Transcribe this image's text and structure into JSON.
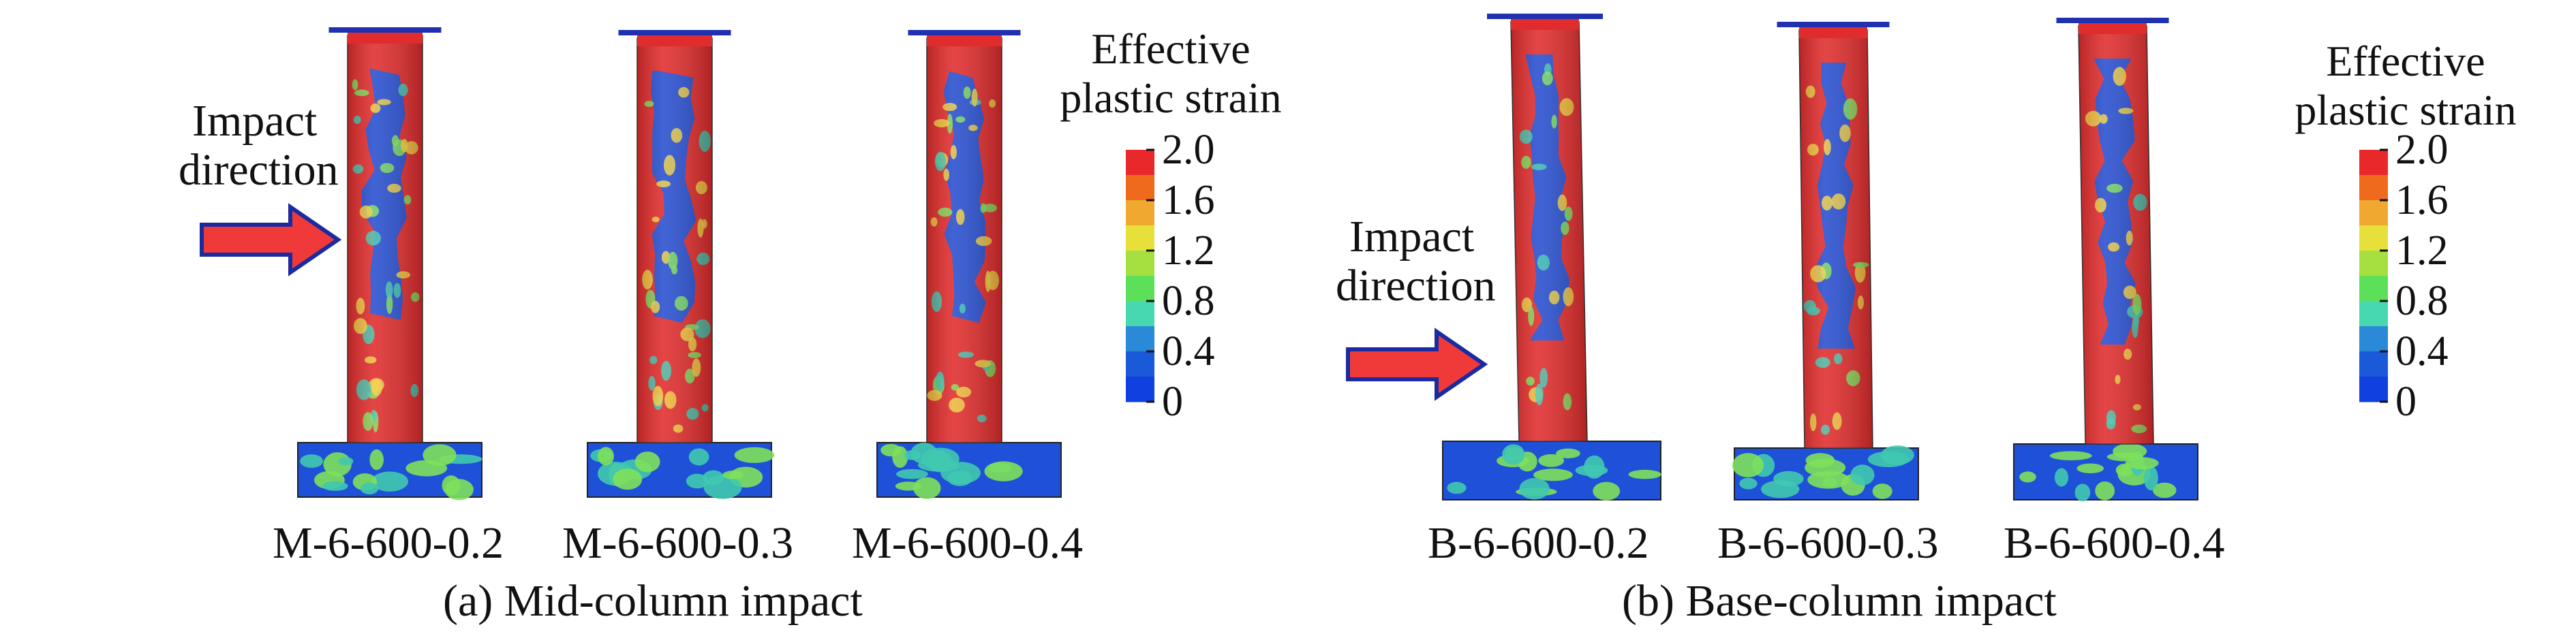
{
  "legend_title": [
    "Effective",
    "plastic strain"
  ],
  "legend_ticks": [
    "2.0",
    "1.6",
    "1.2",
    "0.8",
    "0.4",
    "0"
  ],
  "colorscale": [
    "#e8282a",
    "#f06a1e",
    "#f0a830",
    "#e8e03a",
    "#a6e040",
    "#5ce05a",
    "#48d8b0",
    "#2a8ad8",
    "#1a5ad8",
    "#1040e0"
  ],
  "colors": {
    "red": "#e02c2c",
    "blue": "#1e50d8",
    "green": "#7ee05a",
    "cyan": "#40c8b0",
    "yellow": "#f0d040",
    "arrow_fill": "#f03a3a",
    "arrow_stroke": "#1a2aa0",
    "plate": "#2030b0"
  },
  "impact_label": [
    "Impact",
    "direction"
  ],
  "panel_a": {
    "caption": "(a) Mid-column impact",
    "models": [
      "M-6-600-0.2",
      "M-6-600-0.3",
      "M-6-600-0.4"
    ]
  },
  "panel_b": {
    "caption": "(b) Base-column impact",
    "models": [
      "B-6-600-0.2",
      "B-6-600-0.3",
      "B-6-600-0.4"
    ]
  }
}
